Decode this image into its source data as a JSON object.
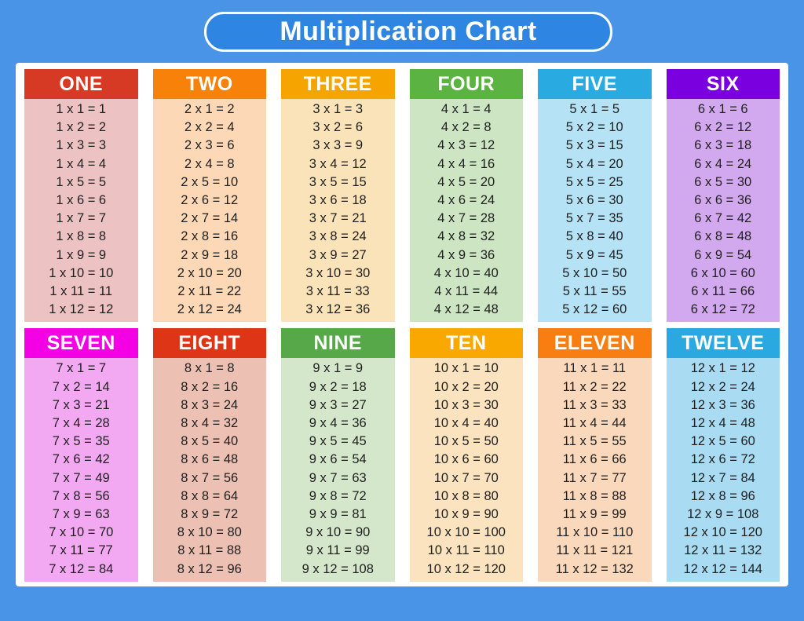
{
  "title": {
    "text": "Multiplication Chart"
  },
  "colors": {
    "page_background": "#4A94E8",
    "banner_background": "#2E86E2",
    "banner_border": "#FFFFFF",
    "banner_text": "#FFFFFF",
    "card_background": "#FFFFFF",
    "header_text": "#FFFFFF",
    "fact_text": "#1E1E1E"
  },
  "tables": [
    {
      "name": "one",
      "label": "ONE",
      "factor": 1,
      "header_color": "#D63A25",
      "body_color": "#EDC2C2",
      "facts": [
        "1 x 1 = 1",
        "1 x 2 = 2",
        "1 x 3 = 3",
        "1 x 4 = 4",
        "1 x 5 = 5",
        "1 x 6 = 6",
        "1 x 7 = 7",
        "1 x 8 = 8",
        "1 x 9 = 9",
        "1 x 10 = 10",
        "1 x 11 = 11",
        "1 x 12 = 12"
      ]
    },
    {
      "name": "two",
      "label": "TWO",
      "factor": 2,
      "header_color": "#F88109",
      "body_color": "#FCD8B6",
      "facts": [
        "2 x 1 = 2",
        "2 x 2 = 4",
        "2 x 3 = 6",
        "2 x 4 = 8",
        "2 x 5 = 10",
        "2 x 6 = 12",
        "2 x 7 = 14",
        "2 x 8 = 16",
        "2 x 9 = 18",
        "2 x 10 = 20",
        "2 x 11 = 22",
        "2 x 12 = 24"
      ]
    },
    {
      "name": "three",
      "label": "THREE",
      "factor": 3,
      "header_color": "#F6A500",
      "body_color": "#FAE3B8",
      "facts": [
        "3 x 1 = 3",
        "3 x 2 = 6",
        "3 x 3 = 9",
        "3 x 4 = 12",
        "3 x 5 = 15",
        "3 x 6 = 18",
        "3 x 7 = 21",
        "3 x 8 = 24",
        "3 x 9 = 27",
        "3 x 10 = 30",
        "3 x 11 = 33",
        "3 x 12 = 36"
      ]
    },
    {
      "name": "four",
      "label": "FOUR",
      "factor": 4,
      "header_color": "#5BB441",
      "body_color": "#CEE5C4",
      "facts": [
        "4 x 1 = 4",
        "4 x 2 = 8",
        "4 x 3 = 12",
        "4 x 4 = 16",
        "4 x 5 = 20",
        "4 x 6 = 24",
        "4 x 7 = 28",
        "4 x 8 = 32",
        "4 x 9 = 36",
        "4 x 10 = 40",
        "4 x 11 = 44",
        "4 x 12 = 48"
      ]
    },
    {
      "name": "five",
      "label": "FIVE",
      "factor": 5,
      "header_color": "#29ABE2",
      "body_color": "#B5E2F5",
      "facts": [
        "5 x 1 = 5",
        "5 x 2 = 10",
        "5 x 3 = 15",
        "5 x 4 = 20",
        "5 x 5 = 25",
        "5 x 6 = 30",
        "5 x 7 = 35",
        "5 x 8 = 40",
        "5 x 9 = 45",
        "5 x 10 = 50",
        "5 x 11 = 55",
        "5 x 12 = 60"
      ]
    },
    {
      "name": "six",
      "label": "SIX",
      "factor": 6,
      "header_color": "#7A00DF",
      "body_color": "#D2A9EF",
      "facts": [
        "6 x 1 = 6",
        "6 x 2 = 12",
        "6 x 3 = 18",
        "6 x 4 = 24",
        "6 x 5 = 30",
        "6 x 6 = 36",
        "6 x 7 = 42",
        "6 x 8 = 48",
        "6 x 9 = 54",
        "6 x 10 = 60",
        "6 x 11 = 66",
        "6 x 12 = 72"
      ]
    },
    {
      "name": "seven",
      "label": "SEVEN",
      "factor": 7,
      "header_color": "#F400E4",
      "body_color": "#F3A9F1",
      "facts": [
        "7 x 1 = 7",
        "7 x 2 = 14",
        "7 x 3 = 21",
        "7 x 4 = 28",
        "7 x 5 = 35",
        "7 x 6 = 42",
        "7 x 7 = 49",
        "7 x 8 = 56",
        "7 x 9 = 63",
        "7 x 10 = 70",
        "7 x 11 = 77",
        "7 x 12 = 84"
      ]
    },
    {
      "name": "eight",
      "label": "EIGHT",
      "factor": 8,
      "header_color": "#DE3517",
      "body_color": "#ECC1B4",
      "facts": [
        "8 x 1 = 8",
        "8 x 2 = 16",
        "8 x 3 = 24",
        "8 x 4 = 32",
        "8 x 5 = 40",
        "8 x 6 = 48",
        "8 x 7 = 56",
        "8 x 8 = 64",
        "8 x 9 = 72",
        "8 x 10 = 80",
        "8 x 11 = 88",
        "8 x 12 = 96"
      ]
    },
    {
      "name": "nine",
      "label": "NINE",
      "factor": 9,
      "header_color": "#56A848",
      "body_color": "#D4E7CB",
      "facts": [
        "9 x 1 = 9",
        "9 x 2 = 18",
        "9 x 3 = 27",
        "9 x 4 = 36",
        "9 x 5 = 45",
        "9 x 6 = 54",
        "9 x 7 = 63",
        "9 x 8 = 72",
        "9 x 9 = 81",
        "9 x 10 = 90",
        "9 x 11 = 99",
        "9 x 12 = 108"
      ]
    },
    {
      "name": "ten",
      "label": "TEN",
      "factor": 10,
      "header_color": "#F9A800",
      "body_color": "#FAE3BE",
      "facts": [
        "10 x 1 = 10",
        "10 x 2 = 20",
        "10 x 3 = 30",
        "10 x 4 = 40",
        "10 x 5 = 50",
        "10 x 6 = 60",
        "10 x 7 = 70",
        "10 x 8 = 80",
        "10 x 9 = 90",
        "10 x 10 = 100",
        "10 x 11 = 110",
        "10 x 12 = 120"
      ]
    },
    {
      "name": "eleven",
      "label": "ELEVEN",
      "factor": 11,
      "header_color": "#F87E12",
      "body_color": "#FAD8BB",
      "facts": [
        "11 x 1 = 11",
        "11 x 2 = 22",
        "11 x 3 = 33",
        "11 x 4 = 44",
        "11 x 5 = 55",
        "11 x 6 = 66",
        "11 x 7 = 77",
        "11 x 8 = 88",
        "11 x 9 = 99",
        "11 x 10 = 110",
        "11 x 11 = 121",
        "11 x 12 = 132"
      ]
    },
    {
      "name": "twelve",
      "label": "TWELVE",
      "factor": 12,
      "header_color": "#2AA9E0",
      "body_color": "#A9DBF2",
      "facts": [
        "12 x 1 = 12",
        "12 x 2 = 24",
        "12 x 3 = 36",
        "12 x 4 = 48",
        "12 x 5 = 60",
        "12 x 6 = 72",
        "12 x 7 = 84",
        "12 x 8 = 96",
        "12 x 9 = 108",
        "12 x 10 = 120",
        "12 x 11 = 132",
        "12 x 12 = 144"
      ]
    }
  ],
  "chart_data": {
    "type": "table",
    "title": "Multiplication Chart",
    "columns": [
      "ONE",
      "TWO",
      "THREE",
      "FOUR",
      "FIVE",
      "SIX",
      "SEVEN",
      "EIGHT",
      "NINE",
      "TEN",
      "ELEVEN",
      "TWELVE"
    ],
    "factors": [
      1,
      2,
      3,
      4,
      5,
      6,
      7,
      8,
      9,
      10,
      11,
      12
    ],
    "multipliers": [
      1,
      2,
      3,
      4,
      5,
      6,
      7,
      8,
      9,
      10,
      11,
      12
    ],
    "products": [
      [
        1,
        2,
        3,
        4,
        5,
        6,
        7,
        8,
        9,
        10,
        11,
        12
      ],
      [
        2,
        4,
        6,
        8,
        10,
        12,
        14,
        16,
        18,
        20,
        22,
        24
      ],
      [
        3,
        6,
        9,
        12,
        15,
        18,
        21,
        24,
        27,
        30,
        33,
        36
      ],
      [
        4,
        8,
        12,
        16,
        20,
        24,
        28,
        32,
        36,
        40,
        44,
        48
      ],
      [
        5,
        10,
        15,
        20,
        25,
        30,
        35,
        40,
        45,
        50,
        55,
        60
      ],
      [
        6,
        12,
        18,
        24,
        30,
        36,
        42,
        48,
        54,
        60,
        66,
        72
      ],
      [
        7,
        14,
        21,
        28,
        35,
        42,
        49,
        56,
        63,
        70,
        77,
        84
      ],
      [
        8,
        16,
        24,
        32,
        40,
        48,
        56,
        64,
        72,
        80,
        88,
        96
      ],
      [
        9,
        18,
        27,
        36,
        45,
        54,
        63,
        72,
        81,
        90,
        99,
        108
      ],
      [
        10,
        20,
        30,
        40,
        50,
        60,
        70,
        80,
        90,
        100,
        110,
        120
      ],
      [
        11,
        22,
        33,
        44,
        55,
        66,
        77,
        88,
        99,
        110,
        121,
        132
      ],
      [
        12,
        24,
        36,
        48,
        60,
        72,
        84,
        96,
        108,
        120,
        132,
        144
      ]
    ]
  }
}
